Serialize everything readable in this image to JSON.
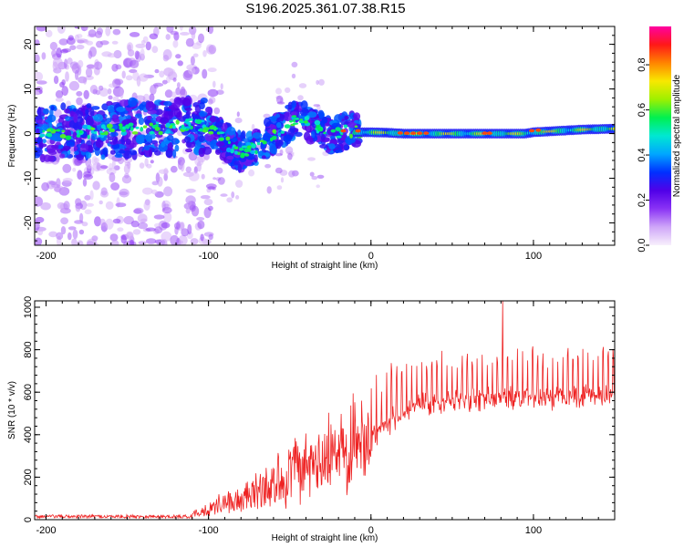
{
  "chart_data": [
    {
      "type": "heatmap",
      "title": "S196.2025.361.07.38.R15",
      "xlabel": "Height of straight line (km)",
      "ylabel": "Frequency (Hz)",
      "xlim": [
        -207,
        150
      ],
      "ylim": [
        -25,
        24
      ],
      "xticks": [
        -200,
        -100,
        0,
        100
      ],
      "yticks": [
        -20,
        -10,
        0,
        10,
        20
      ],
      "colorbar": {
        "label": "Normalized spectral amplitude",
        "range": [
          0,
          0.97
        ],
        "ticks": [
          0.0,
          0.2,
          0.4,
          0.6,
          0.8
        ],
        "ticklabels": [
          "0.0",
          "0.2",
          "0.4",
          "0.6",
          "0.8"
        ],
        "colormap": [
          "#f8f0fc",
          "#cfa6f8",
          "#8a33f5",
          "#5000e8",
          "#0030ff",
          "#00a6ff",
          "#00e8d2",
          "#00f050",
          "#9ef000",
          "#f8e800",
          "#ff8400",
          "#ff1818",
          "#ff00a0"
        ]
      },
      "center_track": {
        "x": [
          -207,
          -180,
          -160,
          -140,
          -120,
          -110,
          -100,
          -90,
          -85,
          -80,
          -75,
          -70,
          -65,
          -60,
          -55,
          -50,
          -45,
          -40,
          -35,
          -30,
          -25,
          -20,
          -15,
          -10,
          0,
          10,
          20,
          40,
          60,
          80,
          95,
          100,
          110,
          120,
          130,
          140,
          150
        ],
        "y": [
          0.0,
          0.2,
          0.8,
          1.2,
          1.5,
          2.0,
          1.5,
          -1.5,
          -3.5,
          -4.0,
          -3.5,
          -3.0,
          -1.5,
          0.0,
          1.0,
          2.5,
          3.5,
          3.0,
          2.0,
          0.0,
          -0.5,
          0.0,
          0.5,
          0.3,
          0.3,
          0.2,
          0.0,
          0.0,
          0.0,
          0.0,
          0.0,
          0.3,
          0.5,
          0.7,
          0.9,
          1.0,
          1.1
        ]
      }
    },
    {
      "type": "line",
      "series": [
        {
          "name": "SNR",
          "color": "#ee2222"
        }
      ],
      "xlabel": "Height of straight line (km)",
      "ylabel": "SNR (10 * v/v)",
      "xlim": [
        -207,
        150
      ],
      "ylim": [
        0,
        1030
      ],
      "xticks": [
        -200,
        -100,
        0,
        100
      ],
      "yticks": [
        0,
        200,
        400,
        600,
        800,
        1000
      ],
      "envelope": {
        "x": [
          -207,
          -150,
          -110,
          -100,
          -90,
          -80,
          -70,
          -60,
          -50,
          -40,
          -30,
          -20,
          -10,
          0,
          10,
          20,
          30,
          40,
          60,
          80,
          100,
          120,
          150
        ],
        "baseline": [
          15,
          15,
          15,
          30,
          40,
          50,
          70,
          90,
          110,
          140,
          170,
          230,
          300,
          370,
          440,
          500,
          530,
          540,
          550,
          560,
          560,
          570,
          580
        ],
        "spike_peak": [
          25,
          25,
          40,
          90,
          140,
          170,
          230,
          310,
          380,
          420,
          480,
          560,
          640,
          700,
          740,
          770,
          790,
          800,
          810,
          830,
          830,
          830,
          830
        ]
      },
      "peak": {
        "x": 81,
        "y": 1030
      }
    }
  ]
}
